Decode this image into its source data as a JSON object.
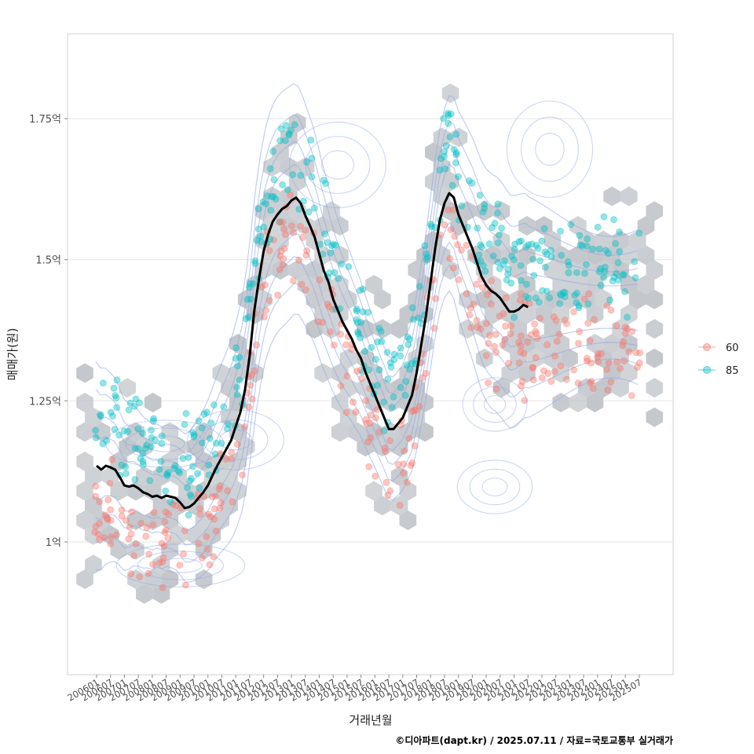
{
  "chart_data": {
    "type": "scatter",
    "title": "",
    "xlabel": "거래년월",
    "ylabel": "매매가(원)",
    "caption": "©디아파트(dapt.kr) / 2025.07.11 / 자료=국토교통부 실거래가",
    "x_ticks": [
      "200601",
      "200607",
      "200701",
      "200707",
      "200801",
      "200807",
      "200901",
      "200907",
      "201001",
      "201007",
      "201101",
      "201107",
      "201201",
      "201207",
      "201301",
      "201307",
      "201401",
      "201407",
      "201501",
      "201507",
      "201601",
      "201607",
      "201701",
      "201707",
      "201801",
      "201807",
      "201901",
      "201907",
      "202001",
      "202007",
      "202101",
      "202107",
      "202201",
      "202207",
      "202301",
      "202307",
      "202401",
      "202407",
      "202501",
      "202507"
    ],
    "y_ticks": [
      {
        "value": 1.0,
        "label": "1억"
      },
      {
        "value": 1.25,
        "label": "1.25억"
      },
      {
        "value": 1.5,
        "label": "1.5억"
      },
      {
        "value": 1.75,
        "label": "1.75억"
      }
    ],
    "x_range": [
      "200509",
      "202610"
    ],
    "y_range": [
      0.77,
      1.89
    ],
    "grid": true,
    "legend_position": "right",
    "legend": [
      {
        "name": "60",
        "color": "#F8766D"
      },
      {
        "name": "85",
        "color": "#00BFC4"
      }
    ],
    "colors": {
      "hex": "#bfc3c8",
      "contour": "#8fa5e6",
      "trend": "#000000",
      "grid": "#e6e6e6",
      "panel_border": "#d2d2d2"
    },
    "trend_line": [
      [
        "200601",
        1.135
      ],
      [
        "200603",
        1.128
      ],
      [
        "200605",
        1.135
      ],
      [
        "200607",
        1.132
      ],
      [
        "200609",
        1.128
      ],
      [
        "200611",
        1.115
      ],
      [
        "200701",
        1.1
      ],
      [
        "200703",
        1.098
      ],
      [
        "200705",
        1.1
      ],
      [
        "200707",
        1.095
      ],
      [
        "200709",
        1.088
      ],
      [
        "200711",
        1.085
      ],
      [
        "200801",
        1.08
      ],
      [
        "200803",
        1.082
      ],
      [
        "200805",
        1.078
      ],
      [
        "200807",
        1.082
      ],
      [
        "200809",
        1.08
      ],
      [
        "200811",
        1.078
      ],
      [
        "200901",
        1.07
      ],
      [
        "200903",
        1.06
      ],
      [
        "200905",
        1.062
      ],
      [
        "200907",
        1.068
      ],
      [
        "200909",
        1.078
      ],
      [
        "200911",
        1.088
      ],
      [
        "201001",
        1.1
      ],
      [
        "201003",
        1.118
      ],
      [
        "201005",
        1.135
      ],
      [
        "201007",
        1.15
      ],
      [
        "201009",
        1.165
      ],
      [
        "201011",
        1.18
      ],
      [
        "201101",
        1.205
      ],
      [
        "201103",
        1.23
      ],
      [
        "201105",
        1.27
      ],
      [
        "201107",
        1.33
      ],
      [
        "201109",
        1.41
      ],
      [
        "201111",
        1.465
      ],
      [
        "201201",
        1.515
      ],
      [
        "201203",
        1.545
      ],
      [
        "201205",
        1.568
      ],
      [
        "201207",
        1.58
      ],
      [
        "201209",
        1.59
      ],
      [
        "201211",
        1.595
      ],
      [
        "201301",
        1.605
      ],
      [
        "201303",
        1.61
      ],
      [
        "201305",
        1.6
      ],
      [
        "201307",
        1.578
      ],
      [
        "201309",
        1.56
      ],
      [
        "201311",
        1.54
      ],
      [
        "201401",
        1.51
      ],
      [
        "201403",
        1.48
      ],
      [
        "201405",
        1.46
      ],
      [
        "201407",
        1.43
      ],
      [
        "201409",
        1.41
      ],
      [
        "201411",
        1.39
      ],
      [
        "201501",
        1.375
      ],
      [
        "201503",
        1.36
      ],
      [
        "201505",
        1.34
      ],
      [
        "201507",
        1.325
      ],
      [
        "201509",
        1.3
      ],
      [
        "201511",
        1.28
      ],
      [
        "201601",
        1.26
      ],
      [
        "201603",
        1.24
      ],
      [
        "201605",
        1.22
      ],
      [
        "201607",
        1.2
      ],
      [
        "201609",
        1.2
      ],
      [
        "201611",
        1.21
      ],
      [
        "201701",
        1.22
      ],
      [
        "201703",
        1.24
      ],
      [
        "201705",
        1.26
      ],
      [
        "201707",
        1.3
      ],
      [
        "201709",
        1.35
      ],
      [
        "201711",
        1.4
      ],
      [
        "201801",
        1.46
      ],
      [
        "201803",
        1.52
      ],
      [
        "201805",
        1.57
      ],
      [
        "201807",
        1.6
      ],
      [
        "201809",
        1.618
      ],
      [
        "201811",
        1.61
      ],
      [
        "201901",
        1.58
      ],
      [
        "201903",
        1.56
      ],
      [
        "201905",
        1.54
      ],
      [
        "201907",
        1.52
      ],
      [
        "201909",
        1.495
      ],
      [
        "201911",
        1.47
      ],
      [
        "202001",
        1.455
      ],
      [
        "202003",
        1.445
      ],
      [
        "202005",
        1.44
      ],
      [
        "202007",
        1.432
      ],
      [
        "202009",
        1.42
      ],
      [
        "202011",
        1.408
      ],
      [
        "202101",
        1.408
      ],
      [
        "202103",
        1.412
      ],
      [
        "202105",
        1.42
      ],
      [
        "202107",
        1.416
      ]
    ],
    "trend_x_scale_note": "",
    "series": [
      {
        "name": "60",
        "points_region_note": ""
      },
      {
        "name": "85",
        "points_region_note": ""
      }
    ]
  }
}
